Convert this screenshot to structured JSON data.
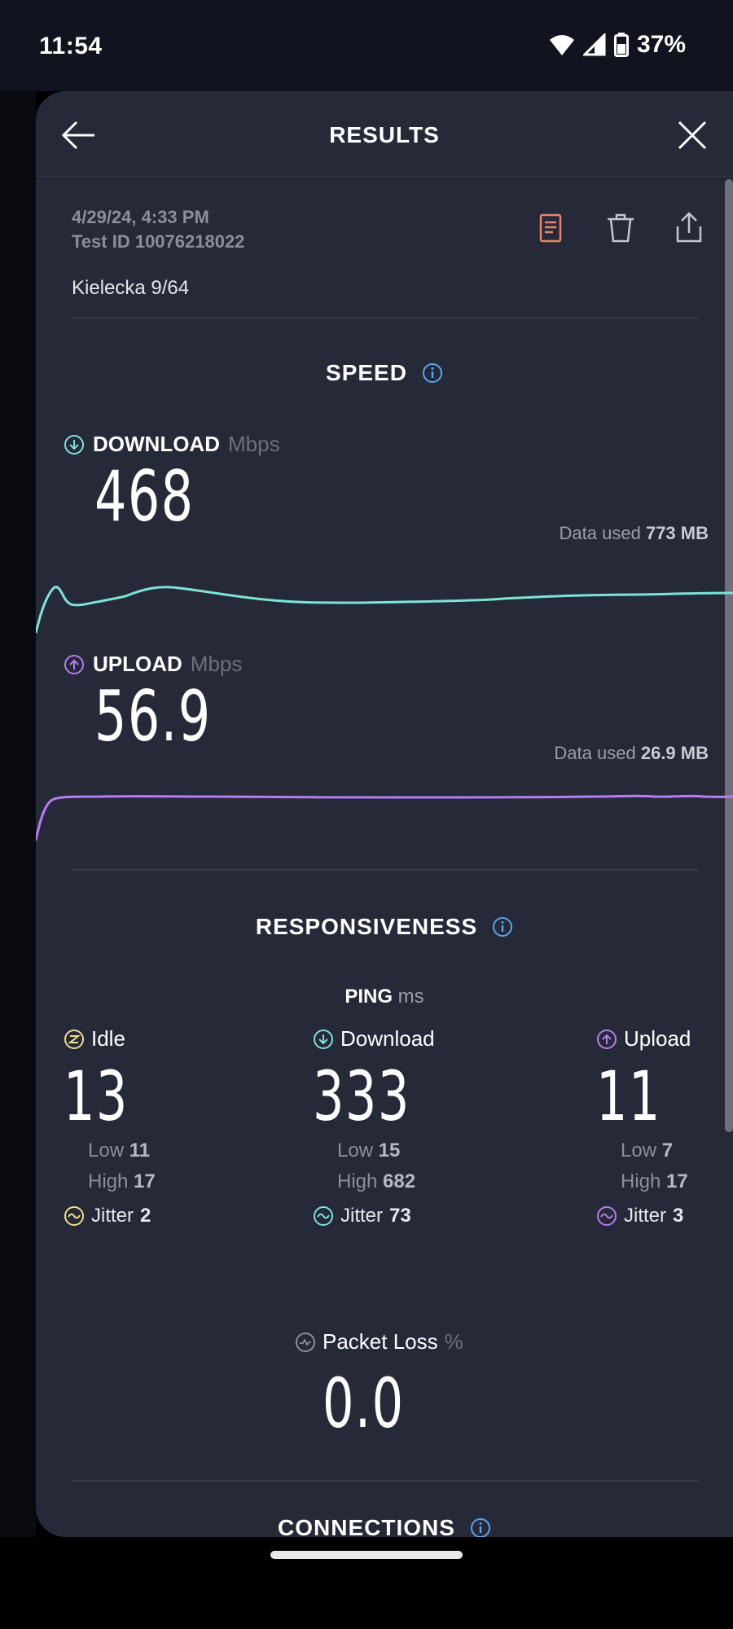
{
  "status_bar": {
    "time": "11:54",
    "battery": "37%"
  },
  "header": {
    "title": "RESULTS"
  },
  "meta": {
    "date": "4/29/24, 4:33 PM",
    "test_id": "Test ID 10076218022",
    "location": "Kielecka 9/64"
  },
  "speed": {
    "title": "SPEED",
    "download": {
      "label": "DOWNLOAD",
      "unit": "Mbps",
      "value": "468",
      "data_used_prefix": "Data used",
      "data_used": "773 MB"
    },
    "upload": {
      "label": "UPLOAD",
      "unit": "Mbps",
      "value": "56.9",
      "data_used_prefix": "Data used",
      "data_used": "26.9 MB"
    }
  },
  "responsiveness": {
    "title": "RESPONSIVENESS",
    "ping_label": "PING",
    "ping_unit": "ms",
    "idle": {
      "label": "Idle",
      "value": "13",
      "low_label": "Low",
      "low": "11",
      "high_label": "High",
      "high": "17",
      "jitter_label": "Jitter",
      "jitter": "2"
    },
    "download": {
      "label": "Download",
      "value": "333",
      "low_label": "Low",
      "low": "15",
      "high_label": "High",
      "high": "682",
      "jitter_label": "Jitter",
      "jitter": "73"
    },
    "upload": {
      "label": "Upload",
      "value": "11",
      "low_label": "Low",
      "low": "7",
      "high_label": "High",
      "high": "17",
      "jitter_label": "Jitter",
      "jitter": "3"
    },
    "packet_loss": {
      "label": "Packet Loss",
      "unit": "%",
      "value": "0.0"
    }
  },
  "connections": {
    "title": "CONNECTIONS"
  },
  "colors": {
    "download": "#7de3d8",
    "upload": "#b67cf0",
    "idle": "#f2de8a",
    "info": "#55a8f0",
    "report_icon": "#e8846a"
  },
  "icons": {
    "back": "arrow-left-icon",
    "close": "close-icon",
    "report": "document-icon",
    "delete": "trash-icon",
    "share": "share-icon"
  }
}
